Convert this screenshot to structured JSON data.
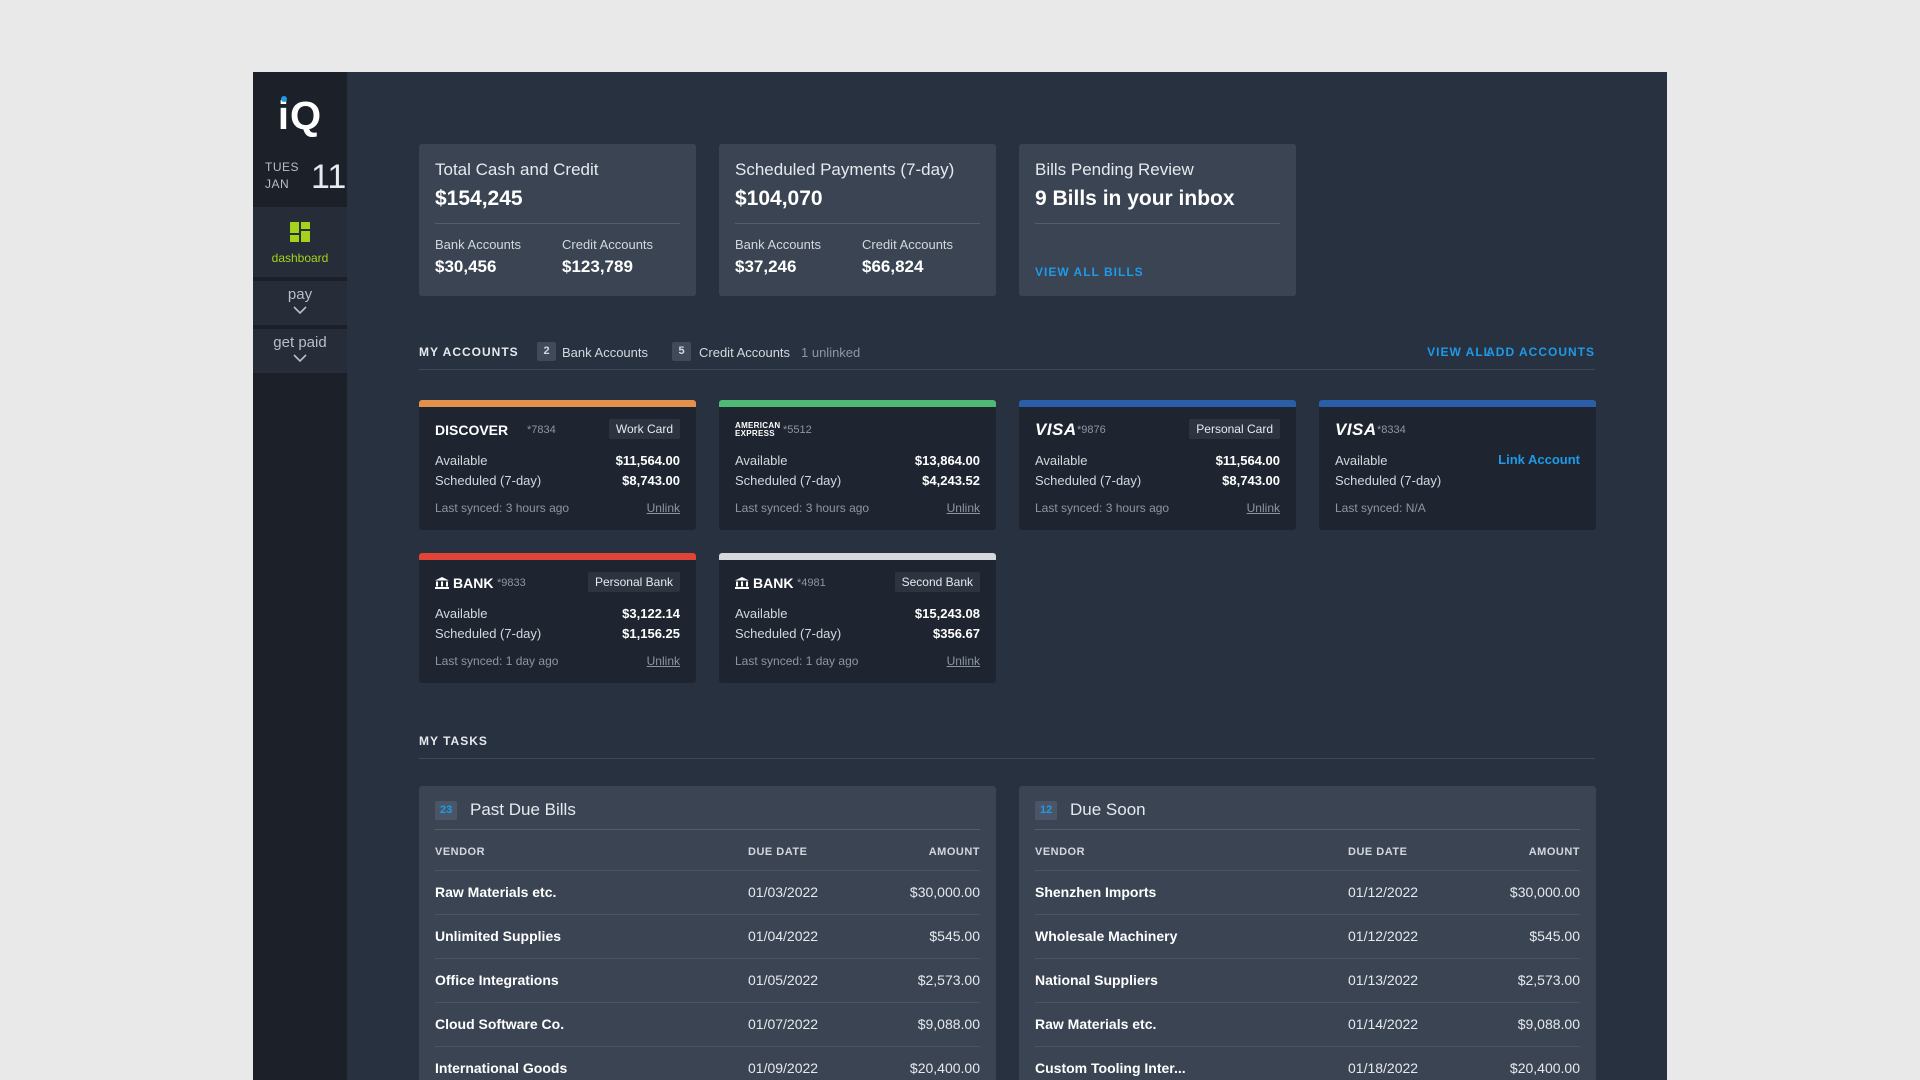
{
  "sidebar": {
    "logo": "iQ",
    "date": {
      "dow": "TUES",
      "month": "JAN",
      "day": "11"
    },
    "nav": {
      "dashboard": "dashboard",
      "pay": "pay",
      "get_paid": "get paid"
    }
  },
  "summary": [
    {
      "title": "Total Cash and Credit",
      "amount": "$154,245",
      "left_label": "Bank Accounts",
      "left_value": "$30,456",
      "right_label": "Credit Accounts",
      "right_value": "$123,789"
    },
    {
      "title": "Scheduled Payments (7-day)",
      "amount": "$104,070",
      "left_label": "Bank Accounts",
      "left_value": "$37,246",
      "right_label": "Credit Accounts",
      "right_value": "$66,824"
    },
    {
      "title": "Bills Pending Review",
      "amount": "9 Bills in your inbox",
      "link": "VIEW ALL BILLS"
    }
  ],
  "accounts_header": {
    "title": "MY ACCOUNTS",
    "bank_count": "2",
    "bank_label": "Bank Accounts",
    "credit_count": "5",
    "credit_label": "Credit Accounts",
    "unlinked": "1 unlinked",
    "view_all": "VIEW ALL",
    "add_accounts": "ADD ACCOUNTS"
  },
  "accounts": [
    {
      "brand": "DISCOVER",
      "last4": "*7834",
      "tag": "Work Card",
      "available_label": "Available",
      "available": "$11,564.00",
      "scheduled_label": "Scheduled (7-day)",
      "scheduled": "$8,743.00",
      "synced": "Last synced: 3 hours ago",
      "unlink": "Unlink",
      "color": "#e3904d"
    },
    {
      "brand": "AMERICAN EXPRESS",
      "last4": "*5512",
      "tag": "",
      "available_label": "Available",
      "available": "$13,864.00",
      "scheduled_label": "Scheduled (7-day)",
      "scheduled": "$4,243.52",
      "synced": "Last synced: 3 hours ago",
      "unlink": "Unlink",
      "color": "#4fb873"
    },
    {
      "brand": "VISA",
      "last4": "*9876",
      "tag": "Personal Card",
      "available_label": "Available",
      "available": "$11,564.00",
      "scheduled_label": "Scheduled (7-day)",
      "scheduled": "$8,743.00",
      "synced": "Last synced: 3 hours ago",
      "unlink": "Unlink",
      "color": "#2a5fa8"
    },
    {
      "brand": "VISA",
      "last4": "*8334",
      "tag": "",
      "available_label": "Available",
      "link_account": "Link Account",
      "scheduled_label": "Scheduled (7-day)",
      "synced": "Last synced: N/A",
      "color": "#2a5fa8"
    },
    {
      "brand": "BANK",
      "last4": "*9833",
      "tag": "Personal Bank",
      "available_label": "Available",
      "available": "$3,122.14",
      "scheduled_label": "Scheduled (7-day)",
      "scheduled": "$1,156.25",
      "synced": "Last synced: 1 day ago",
      "unlink": "Unlink",
      "color": "#e04437"
    },
    {
      "brand": "BANK",
      "last4": "*4981",
      "tag": "Second Bank",
      "available_label": "Available",
      "available": "$15,243.08",
      "scheduled_label": "Scheduled (7-day)",
      "scheduled": "$356.67",
      "synced": "Last synced: 1 day ago",
      "unlink": "Unlink",
      "color": "#d5d8dc"
    }
  ],
  "tasks_header": {
    "title": "MY TASKS"
  },
  "tasks": [
    {
      "count": "23",
      "title": "Past Due Bills",
      "columns": {
        "vendor": "VENDOR",
        "due": "DUE DATE",
        "amount": "AMOUNT"
      },
      "rows": [
        {
          "vendor": "Raw Materials etc.",
          "due": "01/03/2022",
          "amount": "$30,000.00"
        },
        {
          "vendor": "Unlimited Supplies",
          "due": "01/04/2022",
          "amount": "$545.00"
        },
        {
          "vendor": "Office Integrations",
          "due": "01/05/2022",
          "amount": "$2,573.00"
        },
        {
          "vendor": "Cloud Software Co.",
          "due": "01/07/2022",
          "amount": "$9,088.00"
        },
        {
          "vendor": "International Goods",
          "due": "01/09/2022",
          "amount": "$20,400.00"
        }
      ]
    },
    {
      "count": "12",
      "title": "Due Soon",
      "columns": {
        "vendor": "VENDOR",
        "due": "DUE DATE",
        "amount": "AMOUNT"
      },
      "rows": [
        {
          "vendor": "Shenzhen Imports",
          "due": "01/12/2022",
          "amount": "$30,000.00"
        },
        {
          "vendor": "Wholesale Machinery",
          "due": "01/12/2022",
          "amount": "$545.00"
        },
        {
          "vendor": "National Suppliers",
          "due": "01/13/2022",
          "amount": "$2,573.00"
        },
        {
          "vendor": "Raw Materials etc.",
          "due": "01/14/2022",
          "amount": "$9,088.00"
        },
        {
          "vendor": "Custom Tooling Inter...",
          "due": "01/18/2022",
          "amount": "$20,400.00"
        }
      ]
    }
  ]
}
